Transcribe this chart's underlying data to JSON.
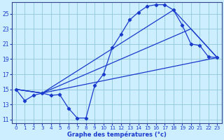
{
  "xlabel": "Graphe des températures (°c)",
  "bg_color": "#cceeff",
  "line_color": "#1a3acc",
  "grid_color": "#99ccdd",
  "xlim": [
    -0.5,
    23.5
  ],
  "ylim": [
    10.5,
    26.5
  ],
  "yticks": [
    11,
    13,
    15,
    17,
    19,
    21,
    23,
    25
  ],
  "xticks": [
    0,
    1,
    2,
    3,
    4,
    5,
    6,
    7,
    8,
    9,
    10,
    11,
    12,
    13,
    14,
    15,
    16,
    17,
    18,
    19,
    20,
    21,
    22,
    23
  ],
  "curve_x": [
    0,
    1,
    2,
    3,
    4,
    5,
    6,
    7,
    8,
    9,
    10,
    11,
    12,
    13,
    14,
    15,
    16,
    17,
    18,
    19,
    20,
    21,
    22,
    23
  ],
  "curve_y": [
    15.0,
    13.5,
    14.2,
    14.5,
    14.2,
    14.3,
    12.5,
    11.2,
    11.2,
    15.5,
    17.0,
    20.5,
    22.3,
    24.2,
    25.2,
    26.0,
    26.2,
    26.2,
    25.5,
    23.5,
    21.0,
    20.8,
    19.3,
    19.2
  ],
  "line2_x": [
    0,
    3,
    23
  ],
  "line2_y": [
    15.0,
    14.5,
    19.2
  ],
  "line3_x": [
    0,
    3,
    20,
    23
  ],
  "line3_y": [
    15.0,
    14.5,
    23.0,
    19.2
  ],
  "line4_x": [
    0,
    3,
    18,
    20,
    23
  ],
  "line4_y": [
    15.0,
    14.5,
    25.5,
    23.0,
    19.2
  ]
}
